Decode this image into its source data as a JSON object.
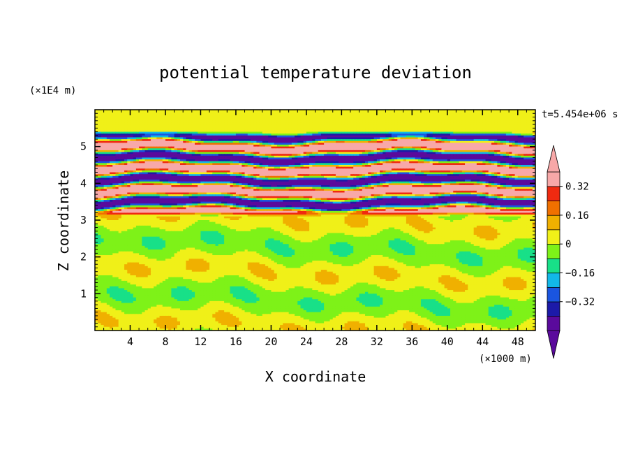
{
  "chart_data": {
    "type": "heatmap",
    "title": "potential temperature deviation",
    "xlabel": "X coordinate",
    "ylabel": "Z coordinate",
    "x_unit": "(×1000 m)",
    "y_unit": "(×1E4 m)",
    "time_label": "t=5.454e+06 s",
    "xlim": [
      0,
      50
    ],
    "ylim": [
      0,
      6
    ],
    "x_ticks": [
      "4",
      "8",
      "12",
      "16",
      "20",
      "24",
      "28",
      "32",
      "36",
      "40",
      "44",
      "48"
    ],
    "x_tick_values": [
      4,
      8,
      12,
      16,
      20,
      24,
      28,
      32,
      36,
      40,
      44,
      48
    ],
    "y_ticks": [
      "1",
      "2",
      "3",
      "4",
      "5"
    ],
    "y_tick_values": [
      1,
      2,
      3,
      4,
      5
    ],
    "colorbar": {
      "levels": [
        -0.48,
        -0.4,
        -0.32,
        -0.24,
        -0.16,
        -0.08,
        0,
        0.08,
        0.16,
        0.24,
        0.32,
        0.4
      ],
      "colors": [
        "#5a0a9c",
        "#1c1aa8",
        "#1a55e0",
        "#12b8e8",
        "#18e088",
        "#7ef218",
        "#f0f018",
        "#f0b000",
        "#f07000",
        "#f02a10",
        "#f8a8a8"
      ],
      "over_color": "#f8a8a8",
      "under_color": "#5a0a9c",
      "label_values": [
        0.32,
        0.16,
        0,
        -0.16,
        -0.32
      ],
      "labels": [
        "0.32",
        "0.16",
        "0",
        "−0.16",
        "−0.32"
      ]
    }
  }
}
